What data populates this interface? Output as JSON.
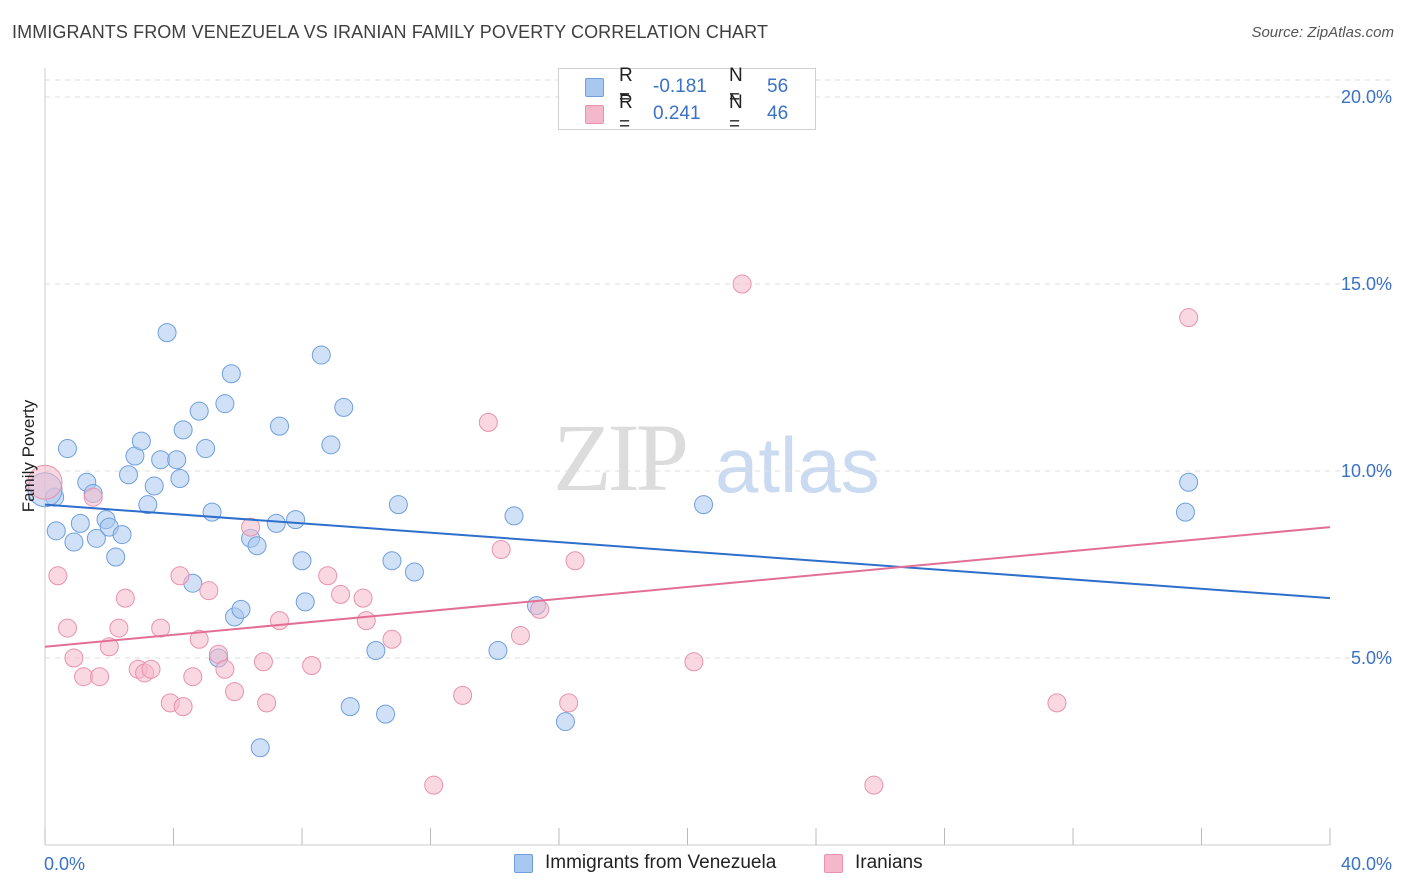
{
  "header": {
    "title": "IMMIGRANTS FROM VENEZUELA VS IRANIAN FAMILY POVERTY CORRELATION CHART",
    "source": "Source: ZipAtlas.com"
  },
  "watermark": {
    "zip": "ZIP",
    "atlas": "atlas"
  },
  "legend_top": {
    "rows": [
      {
        "r_label": "R =",
        "r_value": "-0.181",
        "n_label": "N =",
        "n_value": "56",
        "color": "#a9c8f0"
      },
      {
        "r_label": "R =",
        "r_value": "0.241",
        "n_label": "N =",
        "n_value": "46",
        "color": "#f5b8cb"
      }
    ]
  },
  "legend_bottom": {
    "items": [
      {
        "label": "Immigrants from Venezuela",
        "color": "#a9c8f0"
      },
      {
        "label": "Iranians",
        "color": "#f5b8cb"
      }
    ]
  },
  "colors": {
    "blue_fill": "#a9c8f0",
    "blue_stroke": "#6f9fdd",
    "blue_line": "#2f6fcc",
    "pink_fill": "#f5b8cb",
    "pink_stroke": "#e892ad",
    "pink_line": "#e36f97",
    "axis_text": "#3a72c4",
    "grid": "#dddddd"
  },
  "chart_data": {
    "type": "scatter",
    "title": "IMMIGRANTS FROM VENEZUELA VS IRANIAN FAMILY POVERTY CORRELATION CHART",
    "xlabel": "",
    "ylabel": "Family Poverty",
    "xlim": [
      0,
      40
    ],
    "ylim": [
      0,
      20.5
    ],
    "x_ticks": [
      {
        "value": 0,
        "label": "0.0%"
      },
      {
        "value": 40,
        "label": "40.0%"
      }
    ],
    "y_ticks": [
      {
        "value": 5,
        "label": "5.0%"
      },
      {
        "value": 10,
        "label": "10.0%"
      },
      {
        "value": 15,
        "label": "15.0%"
      },
      {
        "value": 20,
        "label": "20.0%"
      }
    ],
    "grid": "horizontal dashed",
    "legend": "top-center",
    "series": [
      {
        "name": "Immigrants from Venezuela",
        "color": "#a9c8f0",
        "trend": {
          "x": [
            0,
            40
          ],
          "y": [
            9.1,
            6.6
          ]
        },
        "points": [
          [
            0.3,
            9.3
          ],
          [
            0.35,
            8.4
          ],
          [
            0.7,
            10.6
          ],
          [
            0.9,
            8.1
          ],
          [
            1.1,
            8.6
          ],
          [
            1.3,
            9.7
          ],
          [
            1.5,
            9.4
          ],
          [
            1.6,
            8.2
          ],
          [
            1.9,
            8.7
          ],
          [
            2.0,
            8.5
          ],
          [
            2.2,
            7.7
          ],
          [
            2.4,
            8.3
          ],
          [
            2.6,
            9.9
          ],
          [
            2.8,
            10.4
          ],
          [
            3.0,
            10.8
          ],
          [
            3.2,
            9.1
          ],
          [
            3.4,
            9.6
          ],
          [
            3.6,
            10.3
          ],
          [
            3.8,
            13.7
          ],
          [
            4.1,
            10.3
          ],
          [
            4.2,
            9.8
          ],
          [
            4.3,
            11.1
          ],
          [
            4.6,
            7.0
          ],
          [
            4.8,
            11.6
          ],
          [
            5.0,
            10.6
          ],
          [
            5.2,
            8.9
          ],
          [
            5.4,
            5.0
          ],
          [
            5.6,
            11.8
          ],
          [
            5.8,
            12.6
          ],
          [
            5.9,
            6.1
          ],
          [
            6.1,
            6.3
          ],
          [
            6.4,
            8.2
          ],
          [
            6.6,
            8.0
          ],
          [
            6.7,
            2.6
          ],
          [
            7.2,
            8.6
          ],
          [
            7.3,
            11.2
          ],
          [
            7.8,
            8.7
          ],
          [
            8.0,
            7.6
          ],
          [
            8.1,
            6.5
          ],
          [
            8.6,
            13.1
          ],
          [
            8.9,
            10.7
          ],
          [
            9.3,
            11.7
          ],
          [
            9.5,
            3.7
          ],
          [
            10.3,
            5.2
          ],
          [
            10.6,
            3.5
          ],
          [
            10.8,
            7.6
          ],
          [
            11.0,
            9.1
          ],
          [
            11.5,
            7.3
          ],
          [
            14.1,
            5.2
          ],
          [
            14.6,
            8.8
          ],
          [
            15.3,
            6.4
          ],
          [
            16.2,
            3.3
          ],
          [
            20.5,
            9.1
          ],
          [
            35.5,
            8.9
          ],
          [
            35.6,
            9.7
          ],
          [
            0.0,
            9.5
          ]
        ]
      },
      {
        "name": "Iranians",
        "color": "#f5b8cb",
        "trend": {
          "x": [
            0,
            40
          ],
          "y": [
            5.3,
            8.5
          ]
        },
        "points": [
          [
            0.0,
            9.7
          ],
          [
            0.4,
            7.2
          ],
          [
            0.7,
            5.8
          ],
          [
            0.9,
            5.0
          ],
          [
            1.2,
            4.5
          ],
          [
            1.5,
            9.3
          ],
          [
            1.7,
            4.5
          ],
          [
            2.0,
            5.3
          ],
          [
            2.3,
            5.8
          ],
          [
            2.5,
            6.6
          ],
          [
            2.9,
            4.7
          ],
          [
            3.1,
            4.6
          ],
          [
            3.3,
            4.7
          ],
          [
            3.6,
            5.8
          ],
          [
            3.9,
            3.8
          ],
          [
            4.2,
            7.2
          ],
          [
            4.3,
            3.7
          ],
          [
            4.6,
            4.5
          ],
          [
            4.8,
            5.5
          ],
          [
            5.1,
            6.8
          ],
          [
            5.4,
            5.1
          ],
          [
            5.6,
            4.7
          ],
          [
            5.9,
            4.1
          ],
          [
            6.4,
            8.5
          ],
          [
            6.8,
            4.9
          ],
          [
            6.9,
            3.8
          ],
          [
            7.3,
            6.0
          ],
          [
            8.3,
            4.8
          ],
          [
            8.8,
            7.2
          ],
          [
            9.2,
            6.7
          ],
          [
            9.9,
            6.6
          ],
          [
            10.0,
            6.0
          ],
          [
            10.8,
            5.5
          ],
          [
            12.1,
            1.6
          ],
          [
            13.0,
            4.0
          ],
          [
            13.8,
            11.3
          ],
          [
            14.8,
            5.6
          ],
          [
            14.2,
            7.9
          ],
          [
            15.4,
            6.3
          ],
          [
            16.3,
            3.8
          ],
          [
            16.5,
            7.6
          ],
          [
            20.2,
            4.9
          ],
          [
            21.7,
            15.0
          ],
          [
            25.8,
            1.6
          ],
          [
            31.5,
            3.8
          ],
          [
            35.6,
            14.1
          ]
        ]
      }
    ]
  }
}
